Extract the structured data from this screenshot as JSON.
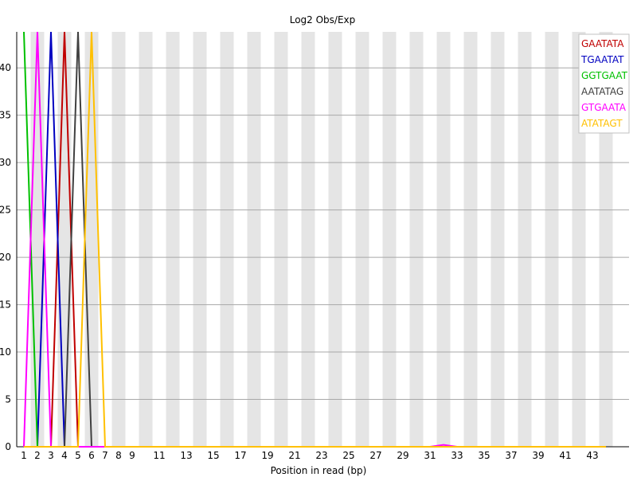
{
  "chart_data": {
    "type": "line",
    "title": "Log2 Obs/Exp",
    "xlabel": "Position in read (bp)",
    "ylabel": "",
    "x_tick_labels": [
      "1",
      "2",
      "3",
      "4",
      "5",
      "6",
      "7",
      "8",
      "9",
      "11",
      "13",
      "15",
      "17",
      "19",
      "21",
      "23",
      "25",
      "27",
      "29",
      "31",
      "33",
      "35",
      "37",
      "39",
      "41",
      "43"
    ],
    "x": [
      1,
      2,
      3,
      4,
      5,
      6,
      7,
      8,
      9,
      10,
      11,
      12,
      13,
      14,
      15,
      16,
      17,
      18,
      19,
      20,
      21,
      22,
      23,
      24,
      25,
      26,
      27,
      28,
      29,
      30,
      31,
      32,
      33,
      34,
      35,
      36,
      37,
      38,
      39,
      40,
      41,
      42,
      43,
      44
    ],
    "y_ticks": [
      0,
      5,
      10,
      15,
      20,
      25,
      30,
      35,
      40
    ],
    "ylim": [
      0,
      43.8
    ],
    "grid": true,
    "alternating_bands": true,
    "legend_position": "top-right",
    "series": [
      {
        "name": "GAATATA",
        "color": "#c00000",
        "values": [
          0,
          0,
          0,
          43.8,
          0,
          0,
          0,
          0,
          0,
          0,
          0,
          0,
          0,
          0,
          0,
          0,
          0,
          0,
          0,
          0,
          0,
          0,
          0,
          0,
          0,
          0,
          0,
          0,
          0,
          0,
          0,
          0,
          0,
          0,
          0,
          0,
          0,
          0,
          0,
          0,
          0,
          0,
          0,
          0
        ]
      },
      {
        "name": "TGAATAT",
        "color": "#0000c0",
        "values": [
          0,
          0,
          43.8,
          0,
          0,
          0,
          0,
          0,
          0,
          0,
          0,
          0,
          0,
          0,
          0,
          0,
          0,
          0,
          0,
          0,
          0,
          0,
          0,
          0,
          0,
          0,
          0,
          0,
          0,
          0,
          0,
          0,
          0,
          0,
          0,
          0,
          0,
          0,
          0,
          0,
          0,
          0,
          0,
          0
        ]
      },
      {
        "name": "GGTGAAT",
        "color": "#00c000",
        "values": [
          43.8,
          0,
          0,
          0,
          0,
          0,
          0,
          0,
          0,
          0,
          0,
          0,
          0,
          0,
          0,
          0,
          0,
          0,
          0,
          0,
          0,
          0,
          0,
          0,
          0,
          0,
          0,
          0,
          0,
          0,
          0,
          0,
          0,
          0,
          0,
          0,
          0,
          0,
          0,
          0,
          0,
          0,
          0,
          0
        ]
      },
      {
        "name": "AATATAG",
        "color": "#404040",
        "values": [
          0,
          0,
          0,
          0,
          43.8,
          0,
          0,
          0,
          0,
          0,
          0,
          0,
          0,
          0,
          0,
          0,
          0,
          0,
          0,
          0,
          0,
          0,
          0,
          0,
          0,
          0,
          0,
          0,
          0,
          0,
          0,
          0,
          0,
          0,
          0,
          0,
          0,
          0,
          0,
          0,
          0,
          0,
          0,
          0
        ]
      },
      {
        "name": "GTGAATA",
        "color": "#ff00ff",
        "values": [
          0,
          43.8,
          0,
          0,
          0,
          0,
          0,
          0,
          0,
          0,
          0,
          0,
          0,
          0,
          0,
          0,
          0,
          0,
          0,
          0,
          0,
          0,
          0,
          0,
          0,
          0,
          0,
          0,
          0,
          0,
          0,
          0.2,
          0,
          0,
          0,
          0,
          0,
          0,
          0,
          0,
          0,
          0,
          0,
          0
        ]
      },
      {
        "name": "ATATAGT",
        "color": "#ffc000",
        "values": [
          0,
          0,
          0,
          0,
          0,
          43.8,
          0,
          0,
          0,
          0,
          0,
          0,
          0,
          0,
          0,
          0,
          0,
          0,
          0,
          0,
          0,
          0,
          0,
          0,
          0,
          0,
          0,
          0,
          0,
          0,
          0,
          0,
          0,
          0,
          0,
          0,
          0,
          0,
          0,
          0,
          0,
          0,
          0,
          0
        ]
      }
    ]
  }
}
